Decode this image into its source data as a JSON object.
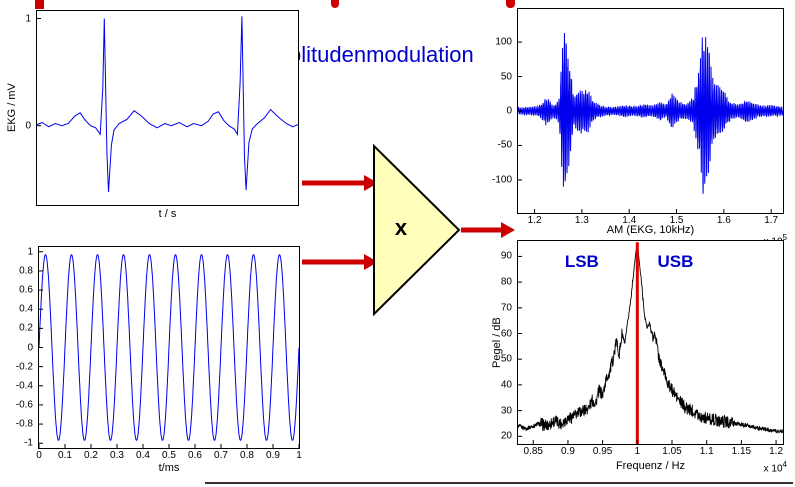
{
  "title": {
    "text": "Amplitudenmodulation"
  },
  "multiplier": {
    "label": "x"
  },
  "colors": {
    "title_blue": "#0000cc",
    "signal_blue": "#0000ee",
    "accent_red": "#cc0000",
    "carrier_red": "#dd0000",
    "triangle_fill": "#ffffbb",
    "annotation_blue": "#0000cc"
  },
  "chart_data": [
    {
      "id": "ekg",
      "type": "line",
      "xlabel": "t / s",
      "ylabel": "EKG / mV",
      "xlim": [
        0,
        1
      ],
      "ylim": [
        -0.74,
        1.07
      ],
      "color": "#0000ee",
      "yticks": [
        {
          "v": 1,
          "l": "1"
        },
        {
          "v": 0,
          "l": "0"
        }
      ],
      "xticks": [],
      "points": [
        [
          0.0,
          0.01
        ],
        [
          0.02,
          0.03
        ],
        [
          0.045,
          -0.01
        ],
        [
          0.07,
          0.02
        ],
        [
          0.095,
          0.0
        ],
        [
          0.12,
          0.02
        ],
        [
          0.145,
          0.09
        ],
        [
          0.165,
          0.12
        ],
        [
          0.185,
          0.05
        ],
        [
          0.205,
          0.0
        ],
        [
          0.225,
          -0.02
        ],
        [
          0.242,
          -0.08
        ],
        [
          0.252,
          0.35
        ],
        [
          0.258,
          1.0
        ],
        [
          0.268,
          -0.25
        ],
        [
          0.274,
          -0.62
        ],
        [
          0.285,
          -0.18
        ],
        [
          0.295,
          -0.04
        ],
        [
          0.315,
          0.02
        ],
        [
          0.345,
          0.06
        ],
        [
          0.372,
          0.14
        ],
        [
          0.4,
          0.09
        ],
        [
          0.43,
          0.02
        ],
        [
          0.46,
          -0.02
        ],
        [
          0.49,
          0.02
        ],
        [
          0.515,
          0.0
        ],
        [
          0.545,
          0.03
        ],
        [
          0.575,
          -0.01
        ],
        [
          0.6,
          0.02
        ],
        [
          0.63,
          0.0
        ],
        [
          0.655,
          0.04
        ],
        [
          0.675,
          0.11
        ],
        [
          0.695,
          0.13
        ],
        [
          0.715,
          0.05
        ],
        [
          0.735,
          0.0
        ],
        [
          0.755,
          -0.03
        ],
        [
          0.768,
          -0.08
        ],
        [
          0.778,
          0.4
        ],
        [
          0.785,
          1.02
        ],
        [
          0.795,
          -0.3
        ],
        [
          0.801,
          -0.6
        ],
        [
          0.812,
          -0.16
        ],
        [
          0.825,
          -0.03
        ],
        [
          0.845,
          0.02
        ],
        [
          0.87,
          0.07
        ],
        [
          0.895,
          0.15
        ],
        [
          0.925,
          0.08
        ],
        [
          0.955,
          0.02
        ],
        [
          0.98,
          -0.01
        ],
        [
          1.0,
          0.01
        ]
      ]
    },
    {
      "id": "sine",
      "type": "sine",
      "xlabel": "t/ms",
      "xlim": [
        0,
        1
      ],
      "ylim": [
        -1.05,
        1.05
      ],
      "cycles": 10,
      "amplitude": 0.97,
      "color": "#0000ee",
      "yticks": [
        {
          "v": 1,
          "l": "1"
        },
        {
          "v": 0.8,
          "l": "0.8"
        },
        {
          "v": 0.6,
          "l": "0.6"
        },
        {
          "v": 0.4,
          "l": "0.4"
        },
        {
          "v": 0.2,
          "l": "0.2"
        },
        {
          "v": 0,
          "l": "0"
        },
        {
          "v": -0.2,
          "l": "-0.2"
        },
        {
          "v": -0.4,
          "l": "-0.4"
        },
        {
          "v": -0.6,
          "l": "-0.6"
        },
        {
          "v": -0.8,
          "l": "-0.8"
        },
        {
          "v": -1,
          "l": "-1"
        }
      ],
      "xticks": [
        {
          "v": 0,
          "l": "0"
        },
        {
          "v": 0.1,
          "l": "0.1"
        },
        {
          "v": 0.2,
          "l": "0.2"
        },
        {
          "v": 0.3,
          "l": "0.3"
        },
        {
          "v": 0.4,
          "l": "0.4"
        },
        {
          "v": 0.5,
          "l": "0.5"
        },
        {
          "v": 0.6,
          "l": "0.6"
        },
        {
          "v": 0.7,
          "l": "0.7"
        },
        {
          "v": 0.8,
          "l": "0.8"
        },
        {
          "v": 0.9,
          "l": "0.9"
        },
        {
          "v": 1,
          "l": "1"
        }
      ]
    },
    {
      "id": "am",
      "type": "am",
      "xlabel": "AM (EKG, 10kHz)",
      "exponent": {
        "base": "x 10",
        "exp": "5"
      },
      "xlim": [
        1.165,
        1.725
      ],
      "ylim": [
        -148,
        148
      ],
      "carrier_cycles": 150,
      "color": "#0000ee",
      "yticks": [
        {
          "v": 100,
          "l": "100"
        },
        {
          "v": 50,
          "l": "50"
        },
        {
          "v": 0,
          "l": "0"
        },
        {
          "v": -50,
          "l": "-50"
        },
        {
          "v": -100,
          "l": "-100"
        }
      ],
      "xticks": [
        {
          "v": 1.2,
          "l": "1.2"
        },
        {
          "v": 1.3,
          "l": "1.3"
        },
        {
          "v": 1.4,
          "l": "1.4"
        },
        {
          "v": 1.5,
          "l": "1.5"
        },
        {
          "v": 1.6,
          "l": "1.6"
        },
        {
          "v": 1.7,
          "l": "1.7"
        }
      ],
      "envelope": [
        [
          1.165,
          5
        ],
        [
          1.19,
          6
        ],
        [
          1.21,
          8
        ],
        [
          1.225,
          22
        ],
        [
          1.24,
          9
        ],
        [
          1.252,
          18
        ],
        [
          1.262,
          135
        ],
        [
          1.272,
          95
        ],
        [
          1.282,
          25
        ],
        [
          1.295,
          32
        ],
        [
          1.31,
          36
        ],
        [
          1.325,
          14
        ],
        [
          1.345,
          7
        ],
        [
          1.37,
          6
        ],
        [
          1.39,
          9
        ],
        [
          1.41,
          7
        ],
        [
          1.43,
          10
        ],
        [
          1.45,
          8
        ],
        [
          1.465,
          14
        ],
        [
          1.478,
          10
        ],
        [
          1.49,
          26
        ],
        [
          1.505,
          14
        ],
        [
          1.52,
          12
        ],
        [
          1.535,
          20
        ],
        [
          1.548,
          70
        ],
        [
          1.557,
          135
        ],
        [
          1.567,
          100
        ],
        [
          1.578,
          45
        ],
        [
          1.59,
          38
        ],
        [
          1.6,
          30
        ],
        [
          1.615,
          14
        ],
        [
          1.63,
          10
        ],
        [
          1.648,
          18
        ],
        [
          1.663,
          12
        ],
        [
          1.68,
          8
        ],
        [
          1.7,
          9
        ],
        [
          1.725,
          6
        ]
      ]
    },
    {
      "id": "spectrum",
      "type": "spectrum",
      "xlabel": "Frequenz / Hz",
      "ylabel": "Pegel / dB",
      "exponent": {
        "base": "x 10",
        "exp": "4"
      },
      "xlim": [
        0.828,
        1.21
      ],
      "ylim": [
        17,
        96
      ],
      "color": "#000000",
      "stroke_width": 0.9,
      "carrier_line": {
        "x": 1.0,
        "top": 95.5,
        "color": "#dd0000"
      },
      "annotations": [
        {
          "text": "LSB",
          "x": 0.92,
          "y": 88
        },
        {
          "text": "USB",
          "x": 1.055,
          "y": 88
        }
      ],
      "yticks": [
        {
          "v": 90,
          "l": "90"
        },
        {
          "v": 80,
          "l": "80"
        },
        {
          "v": 70,
          "l": "70"
        },
        {
          "v": 60,
          "l": "60"
        },
        {
          "v": 50,
          "l": "50"
        },
        {
          "v": 40,
          "l": "40"
        },
        {
          "v": 30,
          "l": "30"
        },
        {
          "v": 20,
          "l": "20"
        }
      ],
      "xticks": [
        {
          "v": 0.85,
          "l": "0.85"
        },
        {
          "v": 0.9,
          "l": "0.9"
        },
        {
          "v": 0.95,
          "l": "0.95"
        },
        {
          "v": 1,
          "l": "1"
        },
        {
          "v": 1.05,
          "l": "1.05"
        },
        {
          "v": 1.1,
          "l": "1.1"
        },
        {
          "v": 1.15,
          "l": "1.15"
        },
        {
          "v": 1.2,
          "l": "1.2"
        }
      ],
      "points": [
        [
          0.828,
          24
        ],
        [
          0.84,
          23
        ],
        [
          0.85,
          24
        ],
        [
          0.86,
          25
        ],
        [
          0.87,
          24
        ],
        [
          0.88,
          26
        ],
        [
          0.89,
          25
        ],
        [
          0.9,
          27
        ],
        [
          0.91,
          28
        ],
        [
          0.92,
          30
        ],
        [
          0.93,
          31
        ],
        [
          0.935,
          34
        ],
        [
          0.94,
          33
        ],
        [
          0.945,
          38
        ],
        [
          0.95,
          36
        ],
        [
          0.955,
          42
        ],
        [
          0.96,
          45
        ],
        [
          0.965,
          50
        ],
        [
          0.97,
          57
        ],
        [
          0.974,
          52
        ],
        [
          0.978,
          60
        ],
        [
          0.982,
          56
        ],
        [
          0.986,
          64
        ],
        [
          0.99,
          72
        ],
        [
          0.994,
          82
        ],
        [
          0.998,
          92
        ],
        [
          1.0,
          95
        ],
        [
          1.002,
          90
        ],
        [
          1.006,
          80
        ],
        [
          1.01,
          68
        ],
        [
          1.014,
          62
        ],
        [
          1.018,
          64
        ],
        [
          1.022,
          58
        ],
        [
          1.026,
          60
        ],
        [
          1.03,
          52
        ],
        [
          1.035,
          47
        ],
        [
          1.04,
          44
        ],
        [
          1.045,
          40
        ],
        [
          1.05,
          38
        ],
        [
          1.06,
          34
        ],
        [
          1.07,
          31
        ],
        [
          1.08,
          30
        ],
        [
          1.09,
          28
        ],
        [
          1.1,
          27
        ],
        [
          1.12,
          26
        ],
        [
          1.14,
          25
        ],
        [
          1.16,
          24
        ],
        [
          1.18,
          23
        ],
        [
          1.2,
          22
        ],
        [
          1.21,
          22
        ]
      ]
    }
  ]
}
